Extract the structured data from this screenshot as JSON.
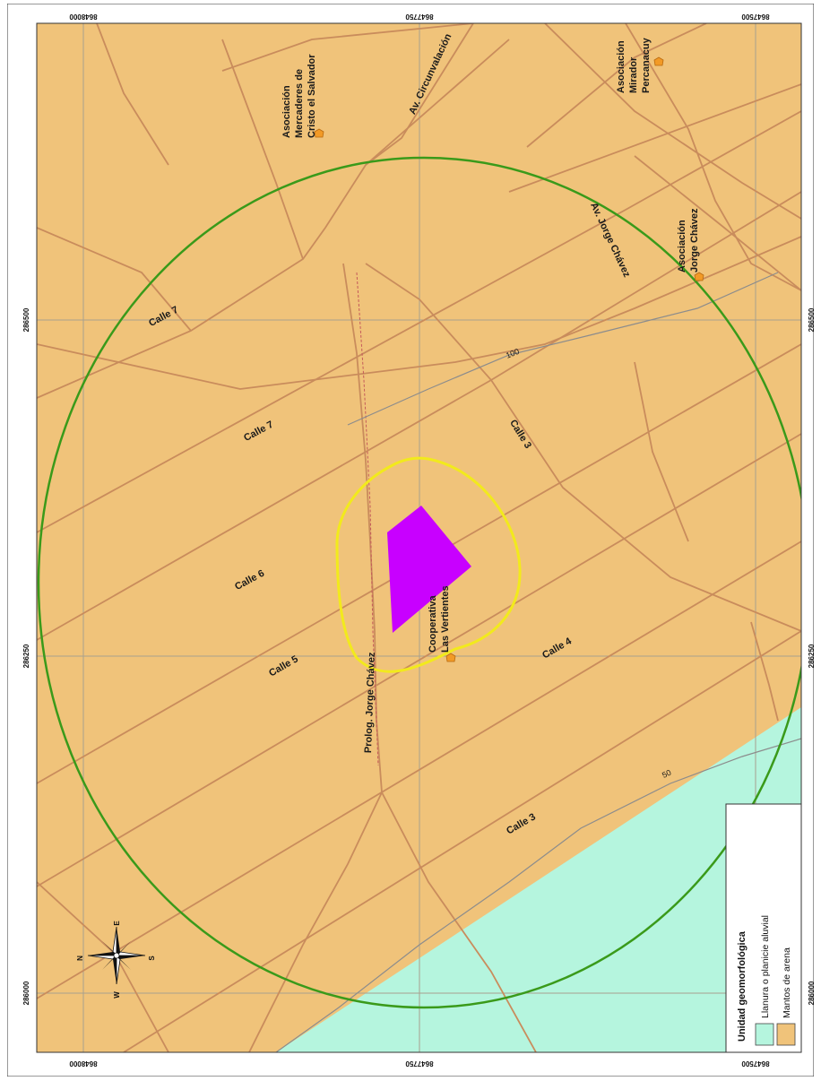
{
  "map": {
    "colors": {
      "sand": "#F0C37A",
      "alluvial": "#B5F5DE",
      "road": "#C98C5C",
      "buffer_outer": "#3A9A1A",
      "buffer_inner": "#F2EA1C",
      "site": "#C800FF",
      "poi": "#F29A26",
      "grid": "#A8A08E",
      "contour": "#8C8C8C"
    },
    "grid": {
      "top_labels": [
        "8648000",
        "8647750",
        "8647500"
      ],
      "bottom_labels": [
        "8648000",
        "8647750",
        "8647500"
      ],
      "left_labels": [
        "286500",
        "286250",
        "286000"
      ],
      "right_labels": [
        "286500",
        "286250",
        "286000"
      ]
    },
    "streets": {
      "circunvalacion": "Av. Circunvalación",
      "jorge_chavez": "Av. Jorge Chávez",
      "prolog": "Prolog. Jorge Chávez",
      "calle7_a": "Calle 7",
      "calle7_b": "Calle 7",
      "calle6": "Calle 6",
      "calle5": "Calle 5",
      "calle4": "Calle 4",
      "calle3_a": "Calle 3",
      "calle3_b": "Calle 3"
    },
    "contours": {
      "c100": "100",
      "c50": "50"
    },
    "places": {
      "mercaderes": [
        "Asociación",
        "Mercaderes de",
        "Cristo el Salvador"
      ],
      "mirador": [
        "Asociación",
        "Mirador",
        "Percanacuy"
      ],
      "jorge_chavez": [
        "Asociación",
        "Jorge Chávez"
      ],
      "cooperativa": [
        "Cooperativa",
        "Las Vertientes"
      ]
    },
    "legend": {
      "title": "Unidad geomorfológica",
      "items": [
        {
          "label": "Llanura o planicie aluvial",
          "color": "#B5F5DE"
        },
        {
          "label": "Mantos de arena",
          "color": "#F0C37A"
        }
      ]
    },
    "compass": {
      "n": "N",
      "s": "S",
      "e": "E",
      "w": "W"
    }
  }
}
